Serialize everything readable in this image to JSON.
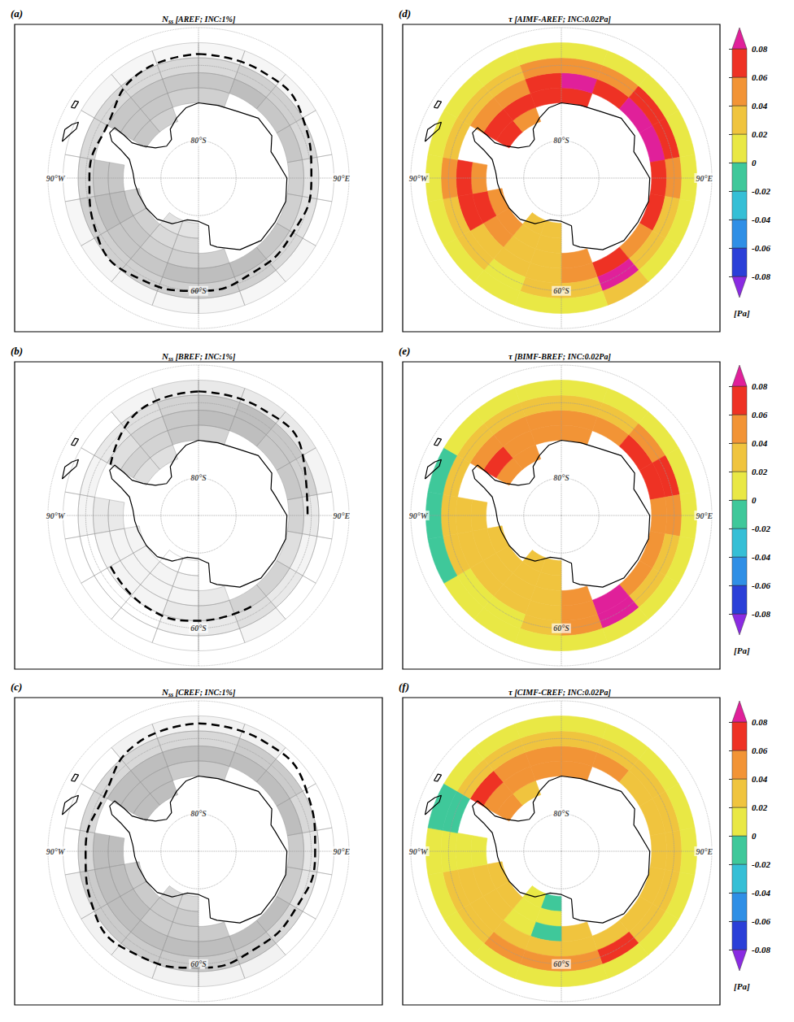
{
  "map": {
    "lat_range": [
      -90,
      -50
    ],
    "lat_grid": [
      -80,
      -60
    ],
    "lon_grid": [
      0,
      90,
      180,
      270
    ],
    "labels": [
      {
        "label": "80°S",
        "lat": -80,
        "lon": 0
      },
      {
        "label": "60°S",
        "lat": -60,
        "lon": 180
      },
      {
        "label": "90°W",
        "lat": -52,
        "lon": 270
      },
      {
        "label": "90°E",
        "lat": -52,
        "lon": 90
      }
    ],
    "cell_lat": [
      -76,
      -72,
      -68,
      -64,
      -60,
      -56
    ],
    "cell_lon": [
      10,
      30,
      50,
      70,
      90,
      110,
      130,
      150,
      170,
      190,
      210,
      230,
      250,
      270,
      290,
      310,
      330,
      350
    ],
    "land": [
      [
        [
          0,
          -70
        ],
        [
          15,
          -70
        ],
        [
          30,
          -69.5
        ],
        [
          45,
          -67.5
        ],
        [
          60,
          -67.5
        ],
        [
          70,
          -69.5
        ],
        [
          75,
          -69
        ],
        [
          90,
          -66.5
        ],
        [
          105,
          -66
        ],
        [
          120,
          -66.5
        ],
        [
          135,
          -66.5
        ],
        [
          150,
          -68
        ],
        [
          165,
          -71
        ],
        [
          170,
          -72
        ],
        [
          168,
          -77
        ],
        [
          180,
          -78.5
        ],
        [
          195,
          -78.5
        ],
        [
          205,
          -77
        ],
        [
          210,
          -76
        ],
        [
          225,
          -74.5
        ],
        [
          240,
          -74
        ],
        [
          255,
          -73.5
        ],
        [
          265,
          -73
        ],
        [
          275,
          -72.5
        ],
        [
          285,
          -71
        ],
        [
          290,
          -68
        ],
        [
          293,
          -65
        ],
        [
          297,
          -63.5
        ],
        [
          301,
          -64
        ],
        [
          300,
          -67
        ],
        [
          298,
          -70
        ],
        [
          300,
          -73
        ],
        [
          305,
          -76
        ],
        [
          315,
          -78
        ],
        [
          325,
          -77.5
        ],
        [
          330,
          -75
        ],
        [
          340,
          -73
        ],
        [
          350,
          -71
        ],
        [
          360,
          -70
        ]
      ],
      [
        [
          285,
          -52.5
        ],
        [
          289,
          -54
        ],
        [
          292,
          -55
        ],
        [
          295,
          -54.8
        ],
        [
          293,
          -53.5
        ],
        [
          290,
          -52.2
        ]
      ],
      [
        [
          299,
          -51.3
        ],
        [
          302,
          -51.3
        ],
        [
          302.5,
          -52.2
        ],
        [
          299.5,
          -52.2
        ]
      ]
    ]
  },
  "colorbar": {
    "range": [
      -0.08,
      0.08
    ],
    "ticks": [
      -0.08,
      -0.06,
      -0.04,
      -0.02,
      0,
      0.02,
      0.04,
      0.06,
      0.08
    ],
    "colors": [
      "#8a2be2",
      "#2a3fd8",
      "#2f8fe6",
      "#35bfd6",
      "#3fc89a",
      "#e9e845",
      "#f0c43e",
      "#f29436",
      "#ee3224",
      "#e0209a"
    ],
    "unit": "[Pa]"
  },
  "chart_data": [
    {
      "type": "contour",
      "letter": "(a)",
      "title": {
        "symbol": "N",
        "subscript": "ss",
        "text": "[AREF; INC:1%]"
      },
      "cells": [
        [
          null,
          null,
          null,
          null,
          null,
          null,
          null,
          null,
          null,
          3,
          3,
          null,
          null,
          null,
          null,
          null,
          null,
          null
        ],
        [
          null,
          null,
          null,
          null,
          null,
          null,
          null,
          null,
          null,
          4,
          4,
          5,
          5,
          null,
          null,
          6,
          5,
          null
        ],
        [
          5,
          null,
          null,
          null,
          null,
          null,
          null,
          null,
          5,
          5,
          5,
          6,
          7,
          6,
          null,
          6,
          6,
          5
        ],
        [
          6,
          7,
          6,
          6,
          5,
          5,
          6,
          7,
          7,
          7,
          6,
          6,
          7,
          6,
          null,
          6,
          6,
          6
        ],
        [
          4,
          5,
          5,
          4,
          3,
          3,
          4,
          5,
          5,
          5,
          5,
          5,
          5,
          4,
          4,
          4,
          4,
          4
        ],
        [
          1,
          1,
          1,
          0,
          0,
          0,
          1,
          1,
          1,
          1,
          1,
          1,
          1,
          0,
          0,
          1,
          1,
          1
        ]
      ],
      "ice_edge": {
        "lon": [
          0,
          30,
          60,
          90,
          120,
          150,
          180,
          210,
          240,
          270,
          300,
          330,
          360
        ],
        "lat": [
          -57,
          -57,
          -58,
          -60,
          -61,
          -61,
          -60,
          -59,
          -59,
          -61,
          -62,
          -58,
          -57
        ]
      }
    },
    {
      "type": "contour",
      "letter": "(b)",
      "title": {
        "symbol": "N",
        "subscript": "ss",
        "text": "[BREF; INC:1%]"
      },
      "cells": [
        [
          null,
          null,
          null,
          null,
          null,
          null,
          null,
          null,
          null,
          0,
          0,
          null,
          null,
          null,
          null,
          null,
          null,
          null
        ],
        [
          null,
          null,
          null,
          null,
          null,
          null,
          null,
          null,
          null,
          1,
          1,
          1,
          1,
          null,
          null,
          3,
          3,
          null
        ],
        [
          4,
          null,
          null,
          null,
          null,
          null,
          null,
          null,
          2,
          1,
          1,
          1,
          1,
          2,
          null,
          4,
          4,
          5
        ],
        [
          6,
          6,
          5,
          5,
          4,
          3,
          4,
          4,
          3,
          2,
          1,
          1,
          1,
          2,
          null,
          3,
          4,
          5
        ],
        [
          5,
          6,
          5,
          4,
          2,
          1,
          2,
          3,
          2,
          1,
          0,
          0,
          0,
          1,
          1,
          2,
          3,
          4
        ],
        [
          2,
          2,
          2,
          1,
          0,
          0,
          0,
          1,
          0,
          0,
          0,
          0,
          0,
          0,
          0,
          0,
          1,
          2
        ]
      ],
      "ice_edge": {
        "lon": [
          0,
          30,
          60,
          90,
          120,
          150,
          180,
          210,
          240,
          270,
          300,
          330,
          360
        ],
        "lat": [
          -57,
          -57,
          -58,
          -61,
          null,
          -62,
          -62,
          -62,
          -63,
          null,
          -63,
          -58,
          -57
        ]
      }
    },
    {
      "type": "contour",
      "letter": "(c)",
      "title": {
        "symbol": "N",
        "subscript": "ss",
        "text": "[CREF; INC:1%]"
      },
      "cells": [
        [
          null,
          null,
          null,
          null,
          null,
          null,
          null,
          null,
          null,
          3,
          3,
          null,
          null,
          null,
          null,
          null,
          null,
          null
        ],
        [
          null,
          null,
          null,
          null,
          null,
          null,
          null,
          null,
          null,
          4,
          4,
          4,
          4,
          null,
          null,
          5,
          5,
          null
        ],
        [
          4,
          null,
          null,
          null,
          null,
          null,
          null,
          null,
          4,
          4,
          4,
          5,
          5,
          5,
          null,
          5,
          5,
          4
        ],
        [
          5,
          5,
          5,
          5,
          4,
          4,
          5,
          5,
          5,
          5,
          5,
          5,
          5,
          5,
          null,
          5,
          5,
          5
        ],
        [
          3,
          4,
          4,
          3,
          2,
          2,
          3,
          4,
          4,
          4,
          4,
          4,
          4,
          3,
          3,
          3,
          3,
          3
        ],
        [
          1,
          1,
          0,
          0,
          0,
          0,
          0,
          1,
          1,
          1,
          1,
          1,
          1,
          0,
          0,
          0,
          1,
          1
        ]
      ],
      "ice_edge": {
        "lon": [
          0,
          30,
          60,
          90,
          120,
          150,
          180,
          210,
          240,
          270,
          300,
          330,
          360
        ],
        "lat": [
          -56,
          -56,
          -57,
          -59,
          -60,
          -60,
          -59,
          -58,
          -58,
          -60,
          -61,
          -57,
          -56
        ]
      }
    },
    {
      "type": "heatmap",
      "letter": "(d)",
      "title": {
        "symbol": "τ",
        "text": "[AIMF-AREF; INC:0.02Pa]"
      },
      "cells": [
        [
          null,
          null,
          null,
          null,
          null,
          null,
          null,
          null,
          null,
          0.03,
          0.03,
          null,
          null,
          null,
          null,
          null,
          null,
          null
        ],
        [
          null,
          null,
          null,
          null,
          null,
          null,
          null,
          null,
          null,
          0.03,
          0.03,
          0.05,
          0.06,
          null,
          null,
          0.07,
          0.06,
          null
        ],
        [
          0.07,
          null,
          null,
          null,
          null,
          null,
          null,
          null,
          0.05,
          0.03,
          0.03,
          0.05,
          0.07,
          0.06,
          null,
          0.07,
          0.07,
          0.08
        ],
        [
          0.09,
          0.08,
          0.09,
          0.085,
          0.07,
          0.065,
          0.05,
          0.07,
          0.05,
          0.03,
          0.03,
          0.04,
          0.065,
          0.07,
          null,
          0.06,
          0.05,
          0.07
        ],
        [
          0.05,
          0.05,
          0.07,
          0.065,
          0.05,
          0.04,
          0.03,
          0.09,
          0.04,
          0.03,
          0.02,
          0.025,
          0.04,
          0.045,
          0.04,
          0.035,
          0.035,
          0.045
        ],
        [
          0.015,
          0.02,
          0.02,
          0.02,
          0.015,
          0.01,
          0.01,
          0.03,
          0.02,
          0.01,
          0.01,
          0.01,
          0.02,
          0.02,
          0.015,
          0.01,
          0.01,
          0.01
        ]
      ]
    },
    {
      "type": "heatmap",
      "letter": "(e)",
      "title": {
        "symbol": "τ",
        "text": "[BIMF-BREF; INC:0.02Pa]"
      },
      "cells": [
        [
          null,
          null,
          null,
          null,
          null,
          null,
          null,
          null,
          null,
          0.03,
          0.03,
          null,
          null,
          null,
          null,
          null,
          null,
          null
        ],
        [
          null,
          null,
          null,
          null,
          null,
          null,
          null,
          null,
          null,
          0.03,
          0.03,
          0.04,
          0.04,
          null,
          null,
          0.05,
          0.05,
          null
        ],
        [
          0.05,
          null,
          null,
          null,
          null,
          null,
          null,
          null,
          0.05,
          0.04,
          0.03,
          0.04,
          0.04,
          0.04,
          null,
          0.07,
          0.06,
          0.06
        ],
        [
          0.06,
          0.06,
          0.07,
          0.07,
          0.05,
          0.05,
          0.05,
          0.09,
          0.06,
          0.04,
          0.03,
          0.03,
          0.04,
          0.04,
          null,
          0.05,
          0.05,
          0.06
        ],
        [
          0.04,
          0.04,
          0.05,
          0.065,
          0.045,
          0.035,
          0.04,
          0.085,
          0.045,
          0.03,
          0.02,
          0.02,
          0.03,
          0.03,
          0.03,
          0.03,
          0.04,
          0.04
        ],
        [
          0.01,
          0.01,
          0.01,
          0.01,
          0.01,
          0.005,
          0.01,
          0.02,
          0.01,
          0.005,
          0.005,
          0.005,
          -0.005,
          -0.01,
          -0.005,
          0.005,
          0.01,
          0.01
        ]
      ]
    },
    {
      "type": "heatmap",
      "letter": "(f)",
      "title": {
        "symbol": "τ",
        "text": "[CIMF-CREF; INC:0.02Pa]"
      },
      "cells": [
        [
          null,
          null,
          null,
          null,
          null,
          null,
          null,
          null,
          null,
          -0.005,
          0.02,
          null,
          null,
          null,
          null,
          null,
          null,
          null
        ],
        [
          null,
          null,
          null,
          null,
          null,
          null,
          null,
          null,
          null,
          0.01,
          0.02,
          0.03,
          0.03,
          null,
          null,
          0.05,
          0.04,
          null
        ],
        [
          0.05,
          null,
          null,
          null,
          null,
          null,
          null,
          null,
          0.03,
          -0.01,
          0.02,
          0.03,
          0.03,
          0.02,
          null,
          0.06,
          0.05,
          0.05
        ],
        [
          0.05,
          0.045,
          0.04,
          0.04,
          0.035,
          0.03,
          0.03,
          0.04,
          0.04,
          0.03,
          0.03,
          0.03,
          0.03,
          0.01,
          null,
          0.07,
          0.05,
          0.05
        ],
        [
          0.04,
          0.04,
          0.03,
          0.03,
          0.03,
          0.025,
          0.03,
          0.065,
          0.05,
          0.06,
          0.05,
          0.04,
          0.03,
          0.02,
          -0.005,
          0.04,
          0.04,
          0.04
        ],
        [
          0.01,
          0.01,
          0.01,
          0.01,
          0.01,
          0.005,
          0.01,
          0.02,
          0.02,
          0.02,
          0.01,
          0.01,
          0.01,
          0.005,
          -0.01,
          0.01,
          0.01,
          0.01
        ]
      ]
    }
  ]
}
